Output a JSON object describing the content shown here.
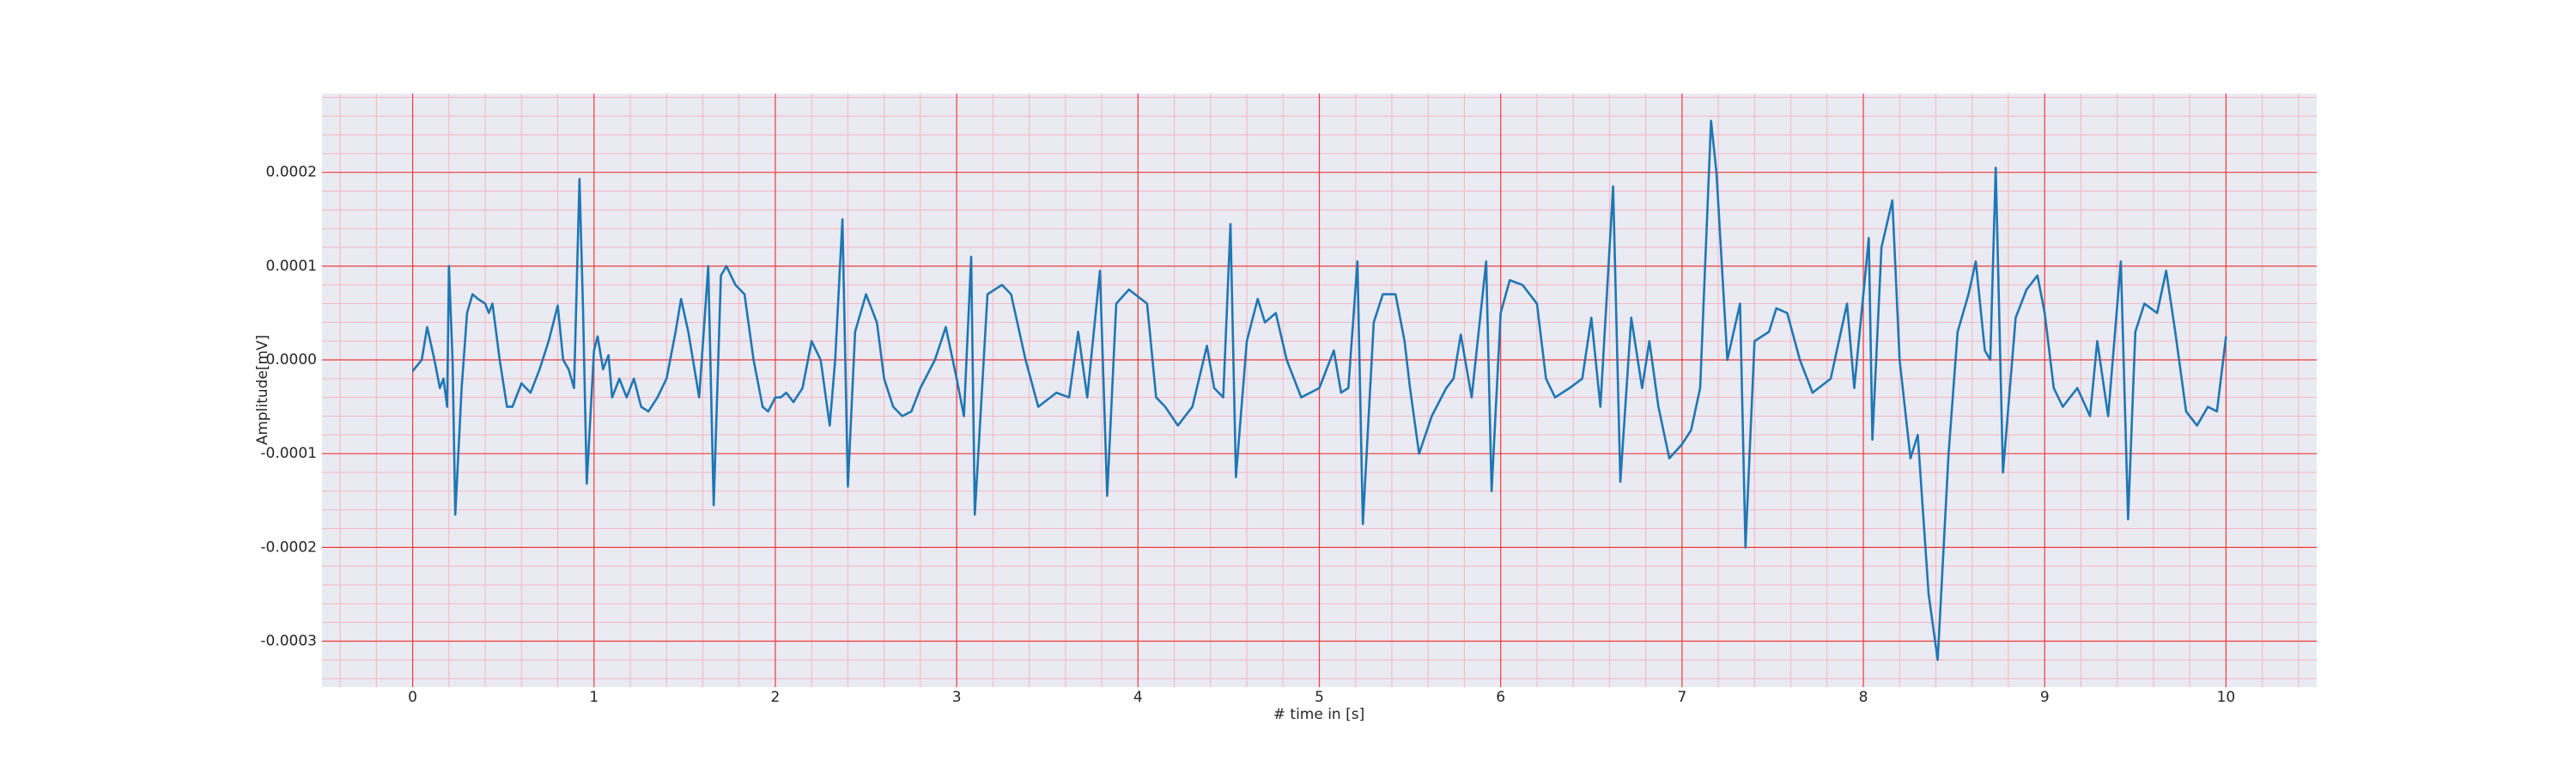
{
  "chart_data": {
    "type": "line",
    "xlabel": "# time in [s]",
    "ylabel": "Amplitude[mV]",
    "xlim": [
      -0.5,
      10.5
    ],
    "ylim": [
      -0.000349,
      0.000284
    ],
    "xticks": [
      0,
      1,
      2,
      3,
      4,
      5,
      6,
      7,
      8,
      9,
      10
    ],
    "yticks": [
      -0.0003,
      -0.0002,
      -0.0001,
      {
        "value": 0,
        "label": "0.0000"
      },
      0.0001,
      0.0002
    ],
    "grid": true,
    "minor_grid": true,
    "series": [
      {
        "color": "#1f77b4",
        "x": [
          0.0,
          0.05,
          0.08,
          0.12,
          0.15,
          0.17,
          0.19,
          0.2,
          0.22,
          0.235,
          0.27,
          0.3,
          0.33,
          0.36,
          0.4,
          0.42,
          0.44,
          0.48,
          0.52,
          0.55,
          0.6,
          0.65,
          0.7,
          0.75,
          0.8,
          0.83,
          0.86,
          0.89,
          0.92,
          0.94,
          0.96,
          1.0,
          1.02,
          1.05,
          1.08,
          1.1,
          1.14,
          1.18,
          1.22,
          1.26,
          1.3,
          1.35,
          1.4,
          1.45,
          1.48,
          1.52,
          1.58,
          1.63,
          1.66,
          1.7,
          1.73,
          1.78,
          1.83,
          1.88,
          1.93,
          1.96,
          2.0,
          2.03,
          2.06,
          2.1,
          2.15,
          2.2,
          2.25,
          2.3,
          2.33,
          2.37,
          2.4,
          2.44,
          2.5,
          2.56,
          2.6,
          2.65,
          2.7,
          2.75,
          2.8,
          2.88,
          2.94,
          3.0,
          3.04,
          3.08,
          3.1,
          3.17,
          3.25,
          3.3,
          3.38,
          3.45,
          3.55,
          3.62,
          3.67,
          3.72,
          3.79,
          3.83,
          3.88,
          3.95,
          4.05,
          4.1,
          4.15,
          4.22,
          4.3,
          4.38,
          4.42,
          4.47,
          4.51,
          4.54,
          4.6,
          4.66,
          4.7,
          4.76,
          4.82,
          4.9,
          4.95,
          5.0,
          5.08,
          5.12,
          5.16,
          5.21,
          5.24,
          5.3,
          5.35,
          5.42,
          5.47,
          5.5,
          5.55,
          5.62,
          5.7,
          5.74,
          5.78,
          5.84,
          5.92,
          5.95,
          6.0,
          6.05,
          6.12,
          6.2,
          6.25,
          6.3,
          6.38,
          6.45,
          6.5,
          6.55,
          6.62,
          6.66,
          6.72,
          6.78,
          6.82,
          6.87,
          6.93,
          7.0,
          7.05,
          7.1,
          7.16,
          7.19,
          7.25,
          7.32,
          7.35,
          7.4,
          7.48,
          7.52,
          7.58,
          7.65,
          7.72,
          7.82,
          7.91,
          7.95,
          8.03,
          8.05,
          8.1,
          8.16,
          8.2,
          8.26,
          8.3,
          8.36,
          8.41,
          8.47,
          8.52,
          8.58,
          8.62,
          8.67,
          8.7,
          8.73,
          8.77,
          8.84,
          8.9,
          8.96,
          9.0,
          9.05,
          9.1,
          9.18,
          9.25,
          9.29,
          9.35,
          9.42,
          9.46,
          9.5,
          9.55,
          9.62,
          9.67,
          9.72,
          9.78,
          9.84,
          9.9,
          9.95,
          10.0
        ],
        "values": [
          -1.2e-05,
          0.0,
          3.5e-05,
          0.0,
          -3e-05,
          -2e-05,
          -5e-05,
          0.0001,
          0.0,
          -0.000165,
          -3e-05,
          5e-05,
          7e-05,
          6.5e-05,
          6e-05,
          5e-05,
          6e-05,
          0.0,
          -5e-05,
          -5e-05,
          -2.5e-05,
          -3.5e-05,
          -1e-05,
          2e-05,
          5.8e-05,
          0.0,
          -1e-05,
          -3e-05,
          0.000193,
          5e-05,
          -0.000132,
          1e-05,
          2.5e-05,
          -1e-05,
          5e-06,
          -4e-05,
          -2e-05,
          -4e-05,
          -2e-05,
          -5e-05,
          -5.5e-05,
          -4e-05,
          -2e-05,
          3e-05,
          6.5e-05,
          3e-05,
          -4e-05,
          0.0001,
          -0.000155,
          9e-05,
          0.0001,
          8e-05,
          7e-05,
          0.0,
          -5e-05,
          -5.5e-05,
          -4e-05,
          -4e-05,
          -3.5e-05,
          -4.5e-05,
          -3e-05,
          2e-05,
          0.0,
          -7e-05,
          0.0,
          0.00015,
          -0.000135,
          3e-05,
          7e-05,
          4e-05,
          -2e-05,
          -5e-05,
          -6e-05,
          -5.5e-05,
          -3e-05,
          0.0,
          3.5e-05,
          -2e-05,
          -6e-05,
          0.00011,
          -0.000165,
          7e-05,
          8e-05,
          7e-05,
          0.0,
          -5e-05,
          -3.5e-05,
          -4e-05,
          3e-05,
          -4e-05,
          9.5e-05,
          -0.000145,
          6e-05,
          7.5e-05,
          6e-05,
          -4e-05,
          -5e-05,
          -7e-05,
          -5e-05,
          1.5e-05,
          -3e-05,
          -4e-05,
          0.000145,
          -0.000125,
          2e-05,
          6.5e-05,
          4e-05,
          5e-05,
          0.0,
          -4e-05,
          -3.5e-05,
          -3e-05,
          1e-05,
          -3.5e-05,
          -3e-05,
          0.000105,
          -0.000175,
          4e-05,
          7e-05,
          7e-05,
          2e-05,
          -3e-05,
          -0.0001,
          -6e-05,
          -3e-05,
          -2e-05,
          2.7e-05,
          -4e-05,
          0.000105,
          -0.00014,
          5e-05,
          8.5e-05,
          8e-05,
          6e-05,
          -2e-05,
          -4e-05,
          -3e-05,
          -2e-05,
          4.5e-05,
          -5e-05,
          0.000185,
          -0.00013,
          4.5e-05,
          -3e-05,
          2e-05,
          -5e-05,
          -0.000105,
          -9e-05,
          -7.5e-05,
          -3e-05,
          0.000255,
          0.0002,
          0.0,
          6e-05,
          -0.0002,
          2e-05,
          3e-05,
          5.5e-05,
          5e-05,
          0.0,
          -3.5e-05,
          -2e-05,
          6e-05,
          -3e-05,
          0.00013,
          -8.5e-05,
          0.00012,
          0.00017,
          0.0,
          -0.000105,
          -8e-05,
          -0.00025,
          -0.00032,
          -0.0001,
          3e-05,
          7e-05,
          0.000105,
          1e-05,
          0.0,
          0.000205,
          -0.00012,
          4.5e-05,
          7.5e-05,
          9e-05,
          5e-05,
          -3e-05,
          -5e-05,
          -3e-05,
          -6e-05,
          2e-05,
          -6e-05,
          0.000105,
          -0.00017,
          3e-05,
          6e-05,
          5e-05,
          9.5e-05,
          3e-05,
          -5.5e-05,
          -7e-05,
          -5e-05,
          -5.5e-05,
          2.5e-05
        ]
      }
    ]
  }
}
